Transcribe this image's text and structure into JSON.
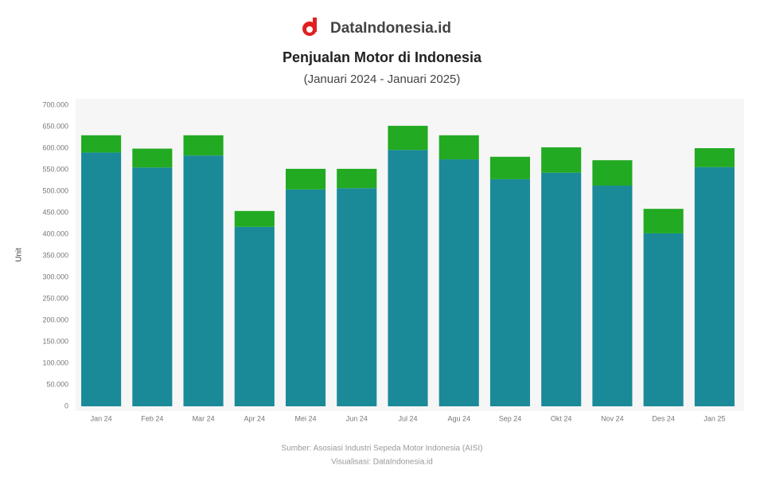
{
  "brand": "DataIndonesia.id",
  "chart_data": {
    "type": "stacked-bar",
    "title": "Penjualan Motor di Indonesia",
    "subtitle": "(Januari 2024 - Januari 2025)",
    "y_label": "Unit",
    "categories": [
      "Jan 24",
      "Feb 24",
      "Mar 24",
      "Apr 24",
      "Mei 24",
      "Jun 24",
      "Jul 24",
      "Agu 24",
      "Sep 24",
      "Okt 24",
      "Nov 24",
      "Des 24",
      "Jan 25"
    ],
    "series": [
      {
        "color": "#1a8a99",
        "values": [
          590000,
          555000,
          583000,
          417000,
          504000,
          507000,
          596000,
          574000,
          528000,
          543000,
          513000,
          402000,
          556000
        ]
      },
      {
        "color": "#22aa22",
        "values": [
          40000,
          44000,
          47000,
          37000,
          48000,
          45000,
          56000,
          56000,
          52000,
          59000,
          59000,
          57000,
          44000
        ]
      }
    ],
    "ylim": [
      0,
      700000
    ],
    "yticks": [
      0,
      {
        "value": 50000,
        "label": "50.000"
      },
      {
        "value": 100000,
        "label": "100.000"
      },
      {
        "value": 150000,
        "label": "150.000"
      },
      {
        "value": 200000,
        "label": "200.000"
      },
      {
        "value": 250000,
        "label": "250.000"
      },
      {
        "value": 300000,
        "label": "300.000"
      },
      {
        "value": 350000,
        "label": "350.000"
      },
      {
        "value": 400000,
        "label": "400.000"
      },
      {
        "value": 450000,
        "label": "450.000"
      },
      {
        "value": 500000,
        "label": "500.000"
      },
      {
        "value": 550000,
        "label": "550.000"
      },
      {
        "value": 600000,
        "label": "600.000"
      },
      {
        "value": 650000,
        "label": "650.000"
      },
      {
        "value": 700000,
        "label": "700.000"
      }
    ],
    "grid": false,
    "source": "Sumber: Asosiasi Industri Sepeda Motor Indonesia (AISI)",
    "credit": "Visualisasi: DataIndonesia.id"
  }
}
